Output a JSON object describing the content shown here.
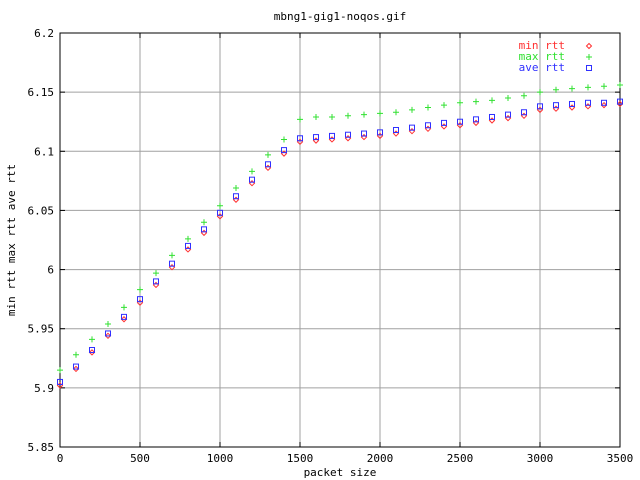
{
  "chart_data": {
    "type": "scatter",
    "title": "mbng1-gig1-noqos.gif",
    "xlabel": "packet size",
    "ylabel": "min rtt max rtt ave rtt",
    "xlim": [
      0,
      3500
    ],
    "ylim": [
      5.85,
      6.2
    ],
    "xticks": [
      0,
      500,
      1000,
      1500,
      2000,
      2500,
      3000,
      3500
    ],
    "yticks": [
      5.85,
      5.9,
      5.95,
      6,
      6.05,
      6.1,
      6.15,
      6.2
    ],
    "xtick_labels": [
      "0",
      "500",
      "1000",
      "1500",
      "2000",
      "2500",
      "3000",
      "3500"
    ],
    "ytick_labels": [
      "5.85",
      "5.9",
      "5.95",
      "6",
      "6.05",
      "6.1",
      "6.15",
      "6.2"
    ],
    "grid": true,
    "legend_position": "top-right",
    "series": [
      {
        "name": "min rtt",
        "marker": "diamond",
        "color": "#ff3030",
        "x": [
          0,
          100,
          200,
          300,
          400,
          500,
          600,
          700,
          800,
          900,
          1000,
          1100,
          1200,
          1300,
          1400,
          1500,
          1600,
          1700,
          1800,
          1900,
          2000,
          2100,
          2200,
          2300,
          2400,
          2500,
          2600,
          2700,
          2800,
          2900,
          3000,
          3100,
          3200,
          3300,
          3400,
          3500
        ],
        "values": [
          5.902,
          5.916,
          5.93,
          5.944,
          5.958,
          5.972,
          5.987,
          6.002,
          6.017,
          6.031,
          6.045,
          6.059,
          6.073,
          6.086,
          6.098,
          6.108,
          6.109,
          6.11,
          6.111,
          6.112,
          6.113,
          6.115,
          6.117,
          6.119,
          6.121,
          6.122,
          6.124,
          6.126,
          6.128,
          6.13,
          6.135,
          6.136,
          6.137,
          6.138,
          6.139,
          6.14
        ]
      },
      {
        "name": "max rtt",
        "marker": "plus",
        "color": "#30e030",
        "x": [
          0,
          100,
          200,
          300,
          400,
          500,
          600,
          700,
          800,
          900,
          1000,
          1100,
          1200,
          1300,
          1400,
          1500,
          1600,
          1700,
          1800,
          1900,
          2000,
          2100,
          2200,
          2300,
          2400,
          2500,
          2600,
          2700,
          2800,
          2900,
          3000,
          3100,
          3200,
          3300,
          3400,
          3500
        ],
        "values": [
          5.915,
          5.928,
          5.941,
          5.954,
          5.968,
          5.983,
          5.997,
          6.012,
          6.026,
          6.04,
          6.054,
          6.069,
          6.083,
          6.097,
          6.11,
          6.127,
          6.129,
          6.129,
          6.13,
          6.131,
          6.132,
          6.133,
          6.135,
          6.137,
          6.139,
          6.141,
          6.142,
          6.143,
          6.145,
          6.147,
          6.15,
          6.152,
          6.153,
          6.154,
          6.155,
          6.156
        ]
      },
      {
        "name": "ave rtt",
        "marker": "square",
        "color": "#3030ff",
        "x": [
          0,
          100,
          200,
          300,
          400,
          500,
          600,
          700,
          800,
          900,
          1000,
          1100,
          1200,
          1300,
          1400,
          1500,
          1600,
          1700,
          1800,
          1900,
          2000,
          2100,
          2200,
          2300,
          2400,
          2500,
          2600,
          2700,
          2800,
          2900,
          3000,
          3100,
          3200,
          3300,
          3400,
          3500
        ],
        "values": [
          5.905,
          5.918,
          5.932,
          5.946,
          5.96,
          5.975,
          5.99,
          6.005,
          6.02,
          6.034,
          6.048,
          6.062,
          6.076,
          6.089,
          6.101,
          6.111,
          6.112,
          6.113,
          6.114,
          6.115,
          6.116,
          6.118,
          6.12,
          6.122,
          6.124,
          6.125,
          6.127,
          6.129,
          6.131,
          6.133,
          6.138,
          6.139,
          6.14,
          6.141,
          6.141,
          6.142
        ]
      }
    ]
  }
}
